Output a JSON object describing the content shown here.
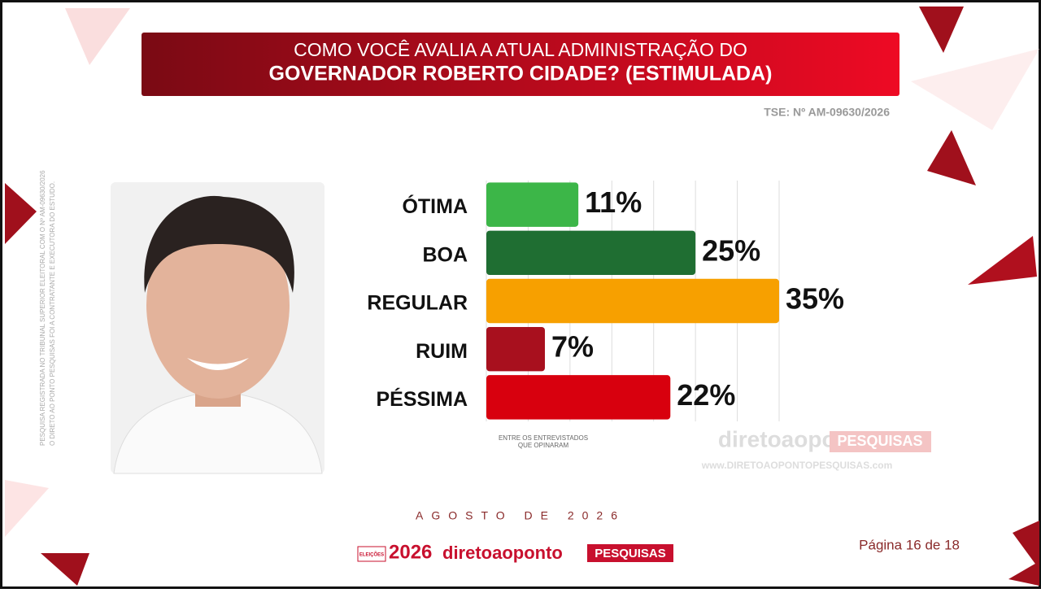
{
  "header": {
    "title_line1": "COMO VOCÊ AVALIA A ATUAL ADMINISTRAÇÃO DO",
    "title_line2": "GOVERNADOR ROBERTO CIDADE? (ESTIMULADA)",
    "registration": "TSE: Nº AM-09630/2026"
  },
  "side_note": [
    "PESQUISA REGISTRADA NO TRIBUNAL SUPERIOR ELEITORAL COM O Nº AM-09630/2026",
    "O DIRETO AO PONTO PESQUISAS FOI A CONTRATANTE E EXECUTORA DO ESTUDO."
  ],
  "chart_data": {
    "type": "bar",
    "orientation": "horizontal",
    "categories": [
      "ÓTIMA",
      "BOA",
      "REGULAR",
      "RUIM",
      "PÉSSIMA"
    ],
    "values": [
      11,
      25,
      35,
      7,
      22
    ],
    "value_labels": [
      "11%",
      "25%",
      "35%",
      "7%",
      "22%"
    ],
    "colors": [
      "#3cb648",
      "#1f6e32",
      "#f7a000",
      "#a8101e",
      "#d8000e"
    ],
    "xlim": [
      0,
      35
    ],
    "xticks": [
      0,
      5,
      10,
      15,
      20,
      25,
      30,
      35
    ],
    "grid": true,
    "note": [
      "ENTRE OS ENTREVISTADOS",
      "QUE OPINARAM"
    ]
  },
  "watermark": {
    "brand": "diretoaoponto",
    "tag": "PESQUISAS",
    "url": "www.DIRETOAOPONTOPESQUISAS.com"
  },
  "footer": {
    "date": "AGOSTO DE 2026",
    "badge": "ELEIÇÕES",
    "year": "2026",
    "brand": "diretoaoponto",
    "tag": "PESQUISAS",
    "page": "Página 16 de 18"
  }
}
